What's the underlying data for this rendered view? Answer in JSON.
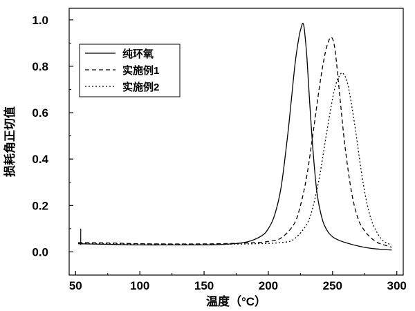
{
  "chart_data": {
    "type": "line",
    "xlabel": "温度（°C）",
    "ylabel": "损耗角正切值",
    "xlim": [
      45,
      305
    ],
    "ylim": [
      -0.1,
      1.05
    ],
    "xticks": [
      50,
      100,
      150,
      200,
      250,
      300
    ],
    "yticks": [
      0.0,
      0.2,
      0.4,
      0.6,
      0.8,
      1.0
    ],
    "xtick_labels": [
      "50",
      "100",
      "150",
      "200",
      "250",
      "300"
    ],
    "ytick_labels": [
      "0.0",
      "0.2",
      "0.4",
      "0.6",
      "0.8",
      "1.0"
    ],
    "legend_position": "top-left",
    "grid": false,
    "series": [
      {
        "name": "纯环氧",
        "style": "solid",
        "x": [
          52,
          80,
          100,
          120,
          140,
          160,
          175,
          185,
          195,
          200,
          205,
          210,
          215,
          218,
          221,
          224,
          226,
          227,
          228,
          230,
          232,
          235,
          238,
          242,
          246,
          250,
          255,
          260,
          270,
          280,
          290,
          296
        ],
        "y": [
          0.035,
          0.032,
          0.03,
          0.03,
          0.03,
          0.031,
          0.036,
          0.045,
          0.07,
          0.1,
          0.16,
          0.28,
          0.5,
          0.66,
          0.82,
          0.93,
          0.975,
          0.985,
          0.96,
          0.84,
          0.66,
          0.42,
          0.25,
          0.14,
          0.09,
          0.065,
          0.05,
          0.04,
          0.025,
          0.015,
          0.01,
          0.008
        ]
      },
      {
        "name": "实施例1",
        "style": "dashed",
        "x": [
          52,
          80,
          100,
          130,
          160,
          190,
          200,
          210,
          220,
          225,
          230,
          235,
          240,
          244,
          247,
          249,
          251,
          253,
          256,
          260,
          265,
          270,
          275,
          280,
          285,
          290,
          296
        ],
        "y": [
          0.04,
          0.038,
          0.035,
          0.034,
          0.035,
          0.04,
          0.045,
          0.06,
          0.12,
          0.2,
          0.33,
          0.52,
          0.72,
          0.85,
          0.91,
          0.925,
          0.9,
          0.82,
          0.65,
          0.44,
          0.25,
          0.14,
          0.09,
          0.06,
          0.04,
          0.03,
          0.02
        ]
      },
      {
        "name": "实施例2",
        "style": "dotted",
        "x": [
          52,
          80,
          100,
          130,
          160,
          190,
          210,
          220,
          230,
          235,
          240,
          245,
          250,
          253,
          256,
          258,
          261,
          264,
          268,
          272,
          276,
          280,
          285,
          290,
          296
        ],
        "y": [
          0.036,
          0.035,
          0.034,
          0.033,
          0.033,
          0.035,
          0.04,
          0.055,
          0.12,
          0.2,
          0.33,
          0.5,
          0.66,
          0.73,
          0.765,
          0.77,
          0.74,
          0.66,
          0.52,
          0.36,
          0.23,
          0.14,
          0.08,
          0.045,
          0.03
        ]
      }
    ],
    "annotation_spike": {
      "x": 54,
      "y_bottom": 0.03,
      "y_top": 0.1
    }
  }
}
